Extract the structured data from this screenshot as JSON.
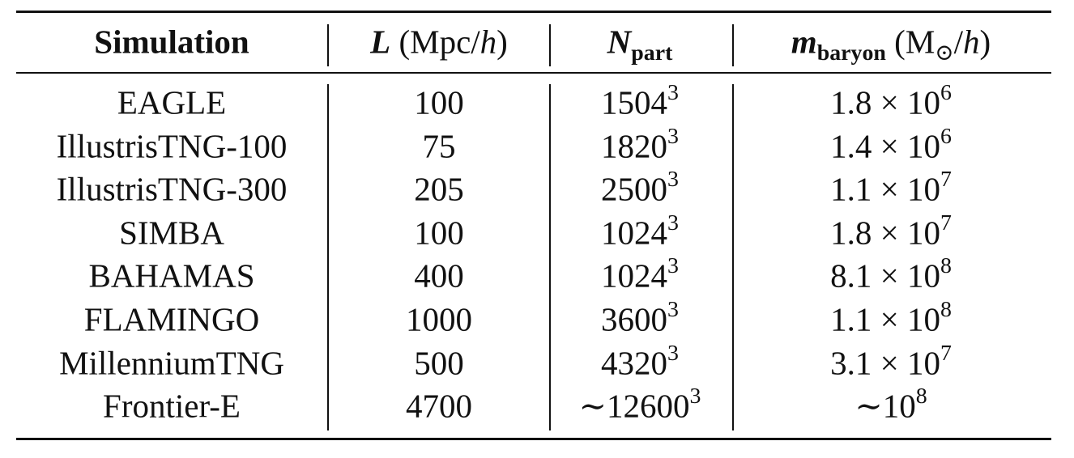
{
  "table": {
    "header": [
      [
        "Simulation"
      ],
      [
        "L",
        "(Mpc/",
        "h",
        ")"
      ],
      [
        "N",
        "part"
      ],
      [
        "m",
        "baryon",
        "(M",
        "⊙",
        "/",
        "h",
        ")"
      ]
    ],
    "rows": [
      [
        "EAGLE",
        100,
        {
          "base": 1504,
          "exp": 3
        },
        {
          "mantissa": 1.8,
          "times": "×",
          "base": 10,
          "exp": 6
        }
      ],
      [
        "IllustrisTNG-100",
        75,
        {
          "base": 1820,
          "exp": 3
        },
        {
          "mantissa": 1.4,
          "times": "×",
          "base": 10,
          "exp": 6
        }
      ],
      [
        "IllustrisTNG-300",
        205,
        {
          "base": 2500,
          "exp": 3
        },
        {
          "mantissa": 1.1,
          "times": "×",
          "base": 10,
          "exp": 7
        }
      ],
      [
        "SIMBA",
        100,
        {
          "base": 1024,
          "exp": 3
        },
        {
          "mantissa": 1.8,
          "times": "×",
          "base": 10,
          "exp": 7
        }
      ],
      [
        "BAHAMAS",
        400,
        {
          "base": 1024,
          "exp": 3
        },
        {
          "mantissa": 8.1,
          "times": "×",
          "base": 10,
          "exp": 8
        }
      ],
      [
        "FLAMINGO",
        1000,
        {
          "base": 3600,
          "exp": 3
        },
        {
          "mantissa": 1.1,
          "times": "×",
          "base": 10,
          "exp": 8
        }
      ],
      [
        "MillenniumTNG",
        500,
        {
          "base": 4320,
          "exp": 3
        },
        {
          "mantissa": 3.1,
          "times": "×",
          "base": 10,
          "exp": 7
        }
      ],
      [
        "Frontier-E",
        4700,
        {
          "prefix": "∼",
          "base": 12600,
          "exp": 3
        },
        {
          "prefix": "∼",
          "base": 10,
          "exp": 8
        }
      ]
    ]
  }
}
